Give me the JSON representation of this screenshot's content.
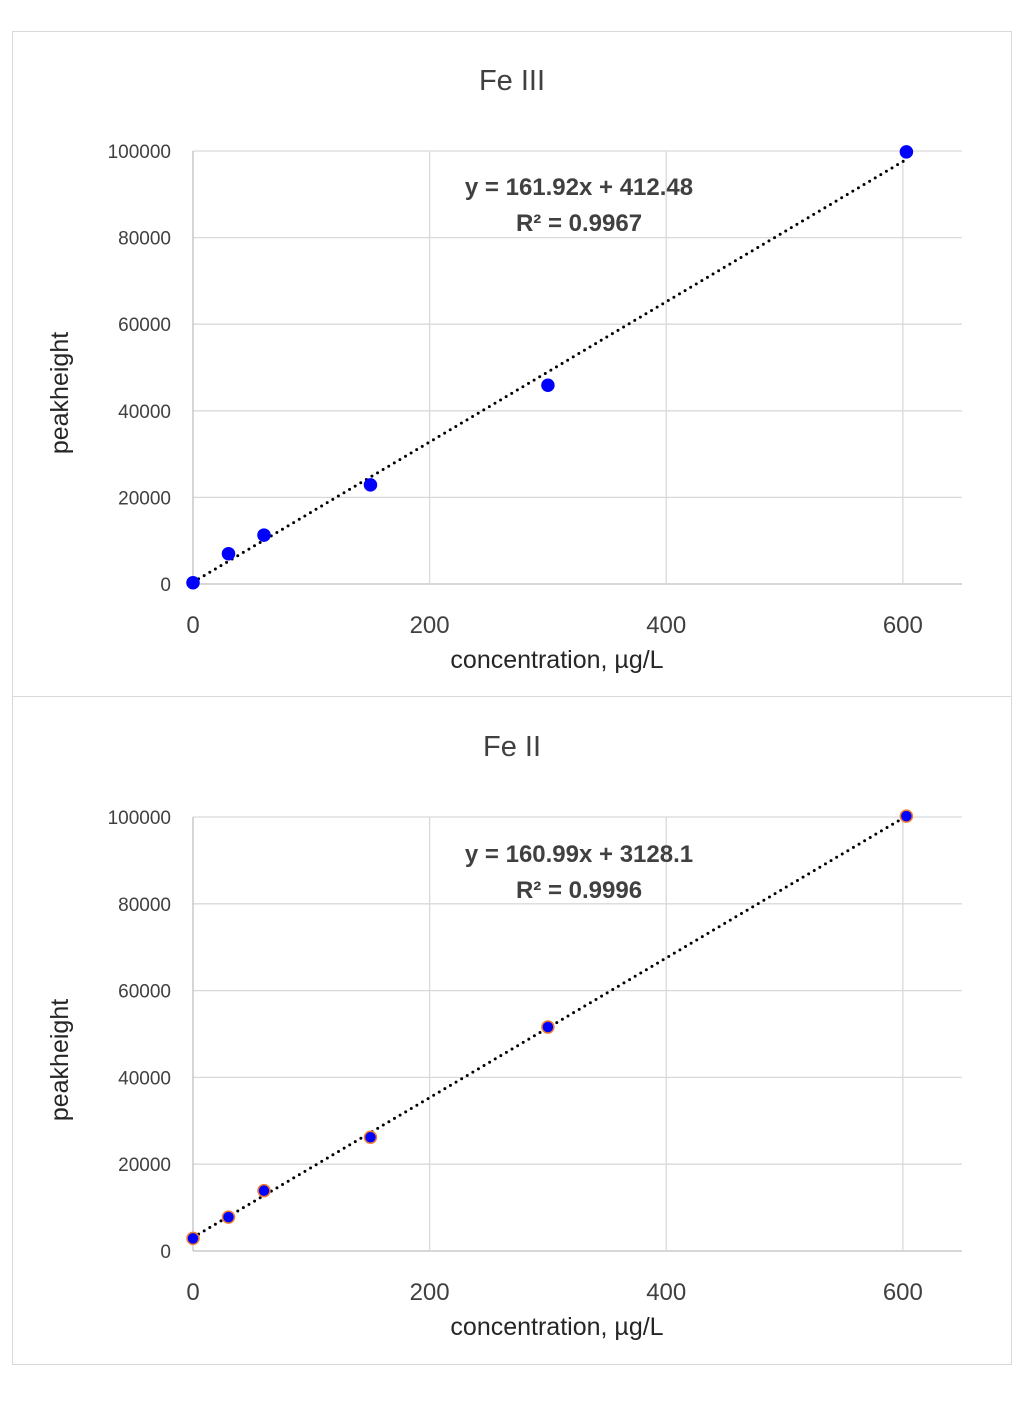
{
  "chart_data": [
    {
      "type": "scatter",
      "title": "Fe III",
      "xlabel": "concentration, µg/L",
      "ylabel": "peakheight",
      "xlim": [
        0,
        650
      ],
      "ylim": [
        0,
        100000
      ],
      "xticks": [
        0,
        200,
        400,
        600
      ],
      "yticks": [
        0,
        20000,
        40000,
        60000,
        80000,
        100000
      ],
      "grid": true,
      "series": [
        {
          "name": "Fe III",
          "x": [
            0,
            30,
            60,
            150,
            300,
            603
          ],
          "y": [
            300,
            7000,
            11300,
            22900,
            45900,
            99800
          ],
          "color": "#0000ff",
          "edgecolor": "#0000ff"
        }
      ],
      "trendline": {
        "slope": 161.92,
        "intercept": 412.48,
        "style": "dotted",
        "color": "#000000",
        "equation": "y = 161.92x + 412.48",
        "r2": "R² = 0.9967"
      }
    },
    {
      "type": "scatter",
      "title": "Fe II",
      "xlabel": "concentration, µg/L",
      "ylabel": "peakheight",
      "xlim": [
        0,
        650
      ],
      "ylim": [
        0,
        100000
      ],
      "xticks": [
        0,
        200,
        400,
        600
      ],
      "yticks": [
        0,
        20000,
        40000,
        60000,
        80000,
        100000
      ],
      "grid": true,
      "series": [
        {
          "name": "Fe II",
          "x": [
            0,
            30,
            60,
            150,
            300,
            603
          ],
          "y": [
            2900,
            7800,
            13900,
            26200,
            51600,
            100200
          ],
          "color": "#0000ff",
          "edgecolor": "#ed7d31"
        }
      ],
      "trendline": {
        "slope": 160.99,
        "intercept": 3128.1,
        "style": "dotted",
        "color": "#000000",
        "equation": "y = 160.99x + 3128.1",
        "r2": "R² = 0.9996"
      }
    }
  ]
}
